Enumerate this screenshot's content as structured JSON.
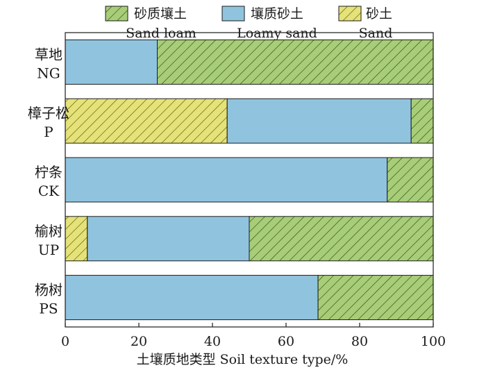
{
  "chart_data": {
    "type": "bar",
    "orientation": "horizontal",
    "stacked": true,
    "categories": [
      {
        "zh": "草地",
        "en": "NG"
      },
      {
        "zh": "樟子松",
        "en": "P"
      },
      {
        "zh": "柠条",
        "en": "CK"
      },
      {
        "zh": "榆树",
        "en": "UP"
      },
      {
        "zh": "杨树",
        "en": "PS"
      }
    ],
    "series": [
      {
        "key": "sand",
        "name_zh": "砂土",
        "name_en": "Sand",
        "color": "#e5e27a",
        "hatch": "#5a5a00",
        "values": [
          0,
          44,
          0,
          6,
          0
        ]
      },
      {
        "key": "loamy",
        "name_zh": "壤质砂土",
        "name_en": "Loamy sand",
        "color": "#90c4de",
        "hatch": null,
        "values": [
          25,
          50,
          87.5,
          44,
          68.7
        ]
      },
      {
        "key": "sandloam",
        "name_zh": "砂质壤土",
        "name_en": "Sand loam",
        "color": "#a8cd78",
        "hatch": "#2f4a10",
        "values": [
          75,
          6,
          12.5,
          50,
          31.3
        ]
      }
    ],
    "legend_order": [
      "sandloam",
      "loamy",
      "sand"
    ],
    "legend_position": "top",
    "xlabel": "土壤质地类型 Soil texture type/%",
    "xlim": [
      0,
      100
    ],
    "xticks": [
      0,
      20,
      40,
      60,
      80,
      100
    ],
    "grid": false
  }
}
